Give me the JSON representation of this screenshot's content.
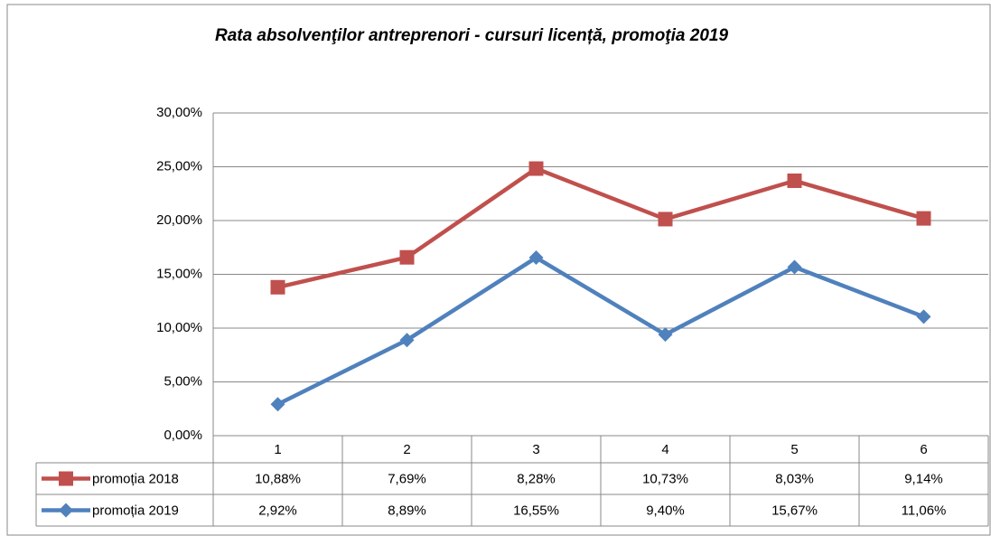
{
  "chart_data": {
    "type": "line",
    "stacked": true,
    "title": "Rata absolvenţilor antreprenori - cursuri licență, promoţia 2019",
    "categories": [
      "1",
      "2",
      "3",
      "4",
      "5",
      "6"
    ],
    "series": [
      {
        "name": "promoția 2018",
        "color": "#c0504d",
        "marker": "square",
        "values": [
          10.88,
          7.69,
          8.28,
          10.73,
          8.03,
          9.14
        ],
        "value_labels": [
          "10,88%",
          "7,69%",
          "8,28%",
          "10,73%",
          "8,03%",
          "9,14%"
        ]
      },
      {
        "name": "promoția 2019",
        "color": "#4f81bd",
        "marker": "diamond",
        "values": [
          2.92,
          8.89,
          16.55,
          9.4,
          15.67,
          11.06
        ],
        "value_labels": [
          "2,92%",
          "8,89%",
          "16,55%",
          "9,40%",
          "15,67%",
          "11,06%"
        ]
      }
    ],
    "ylim": [
      0,
      30
    ],
    "yticks": [
      {
        "value": 0,
        "label": "0,00%"
      },
      {
        "value": 5,
        "label": "5,00%"
      },
      {
        "value": 10,
        "label": "10,00%"
      },
      {
        "value": 15,
        "label": "15,00%"
      },
      {
        "value": 20,
        "label": "20,00%"
      },
      {
        "value": 25,
        "label": "25,00%"
      },
      {
        "value": 30,
        "label": "30,00%"
      }
    ],
    "grid": true,
    "data_table": true
  }
}
